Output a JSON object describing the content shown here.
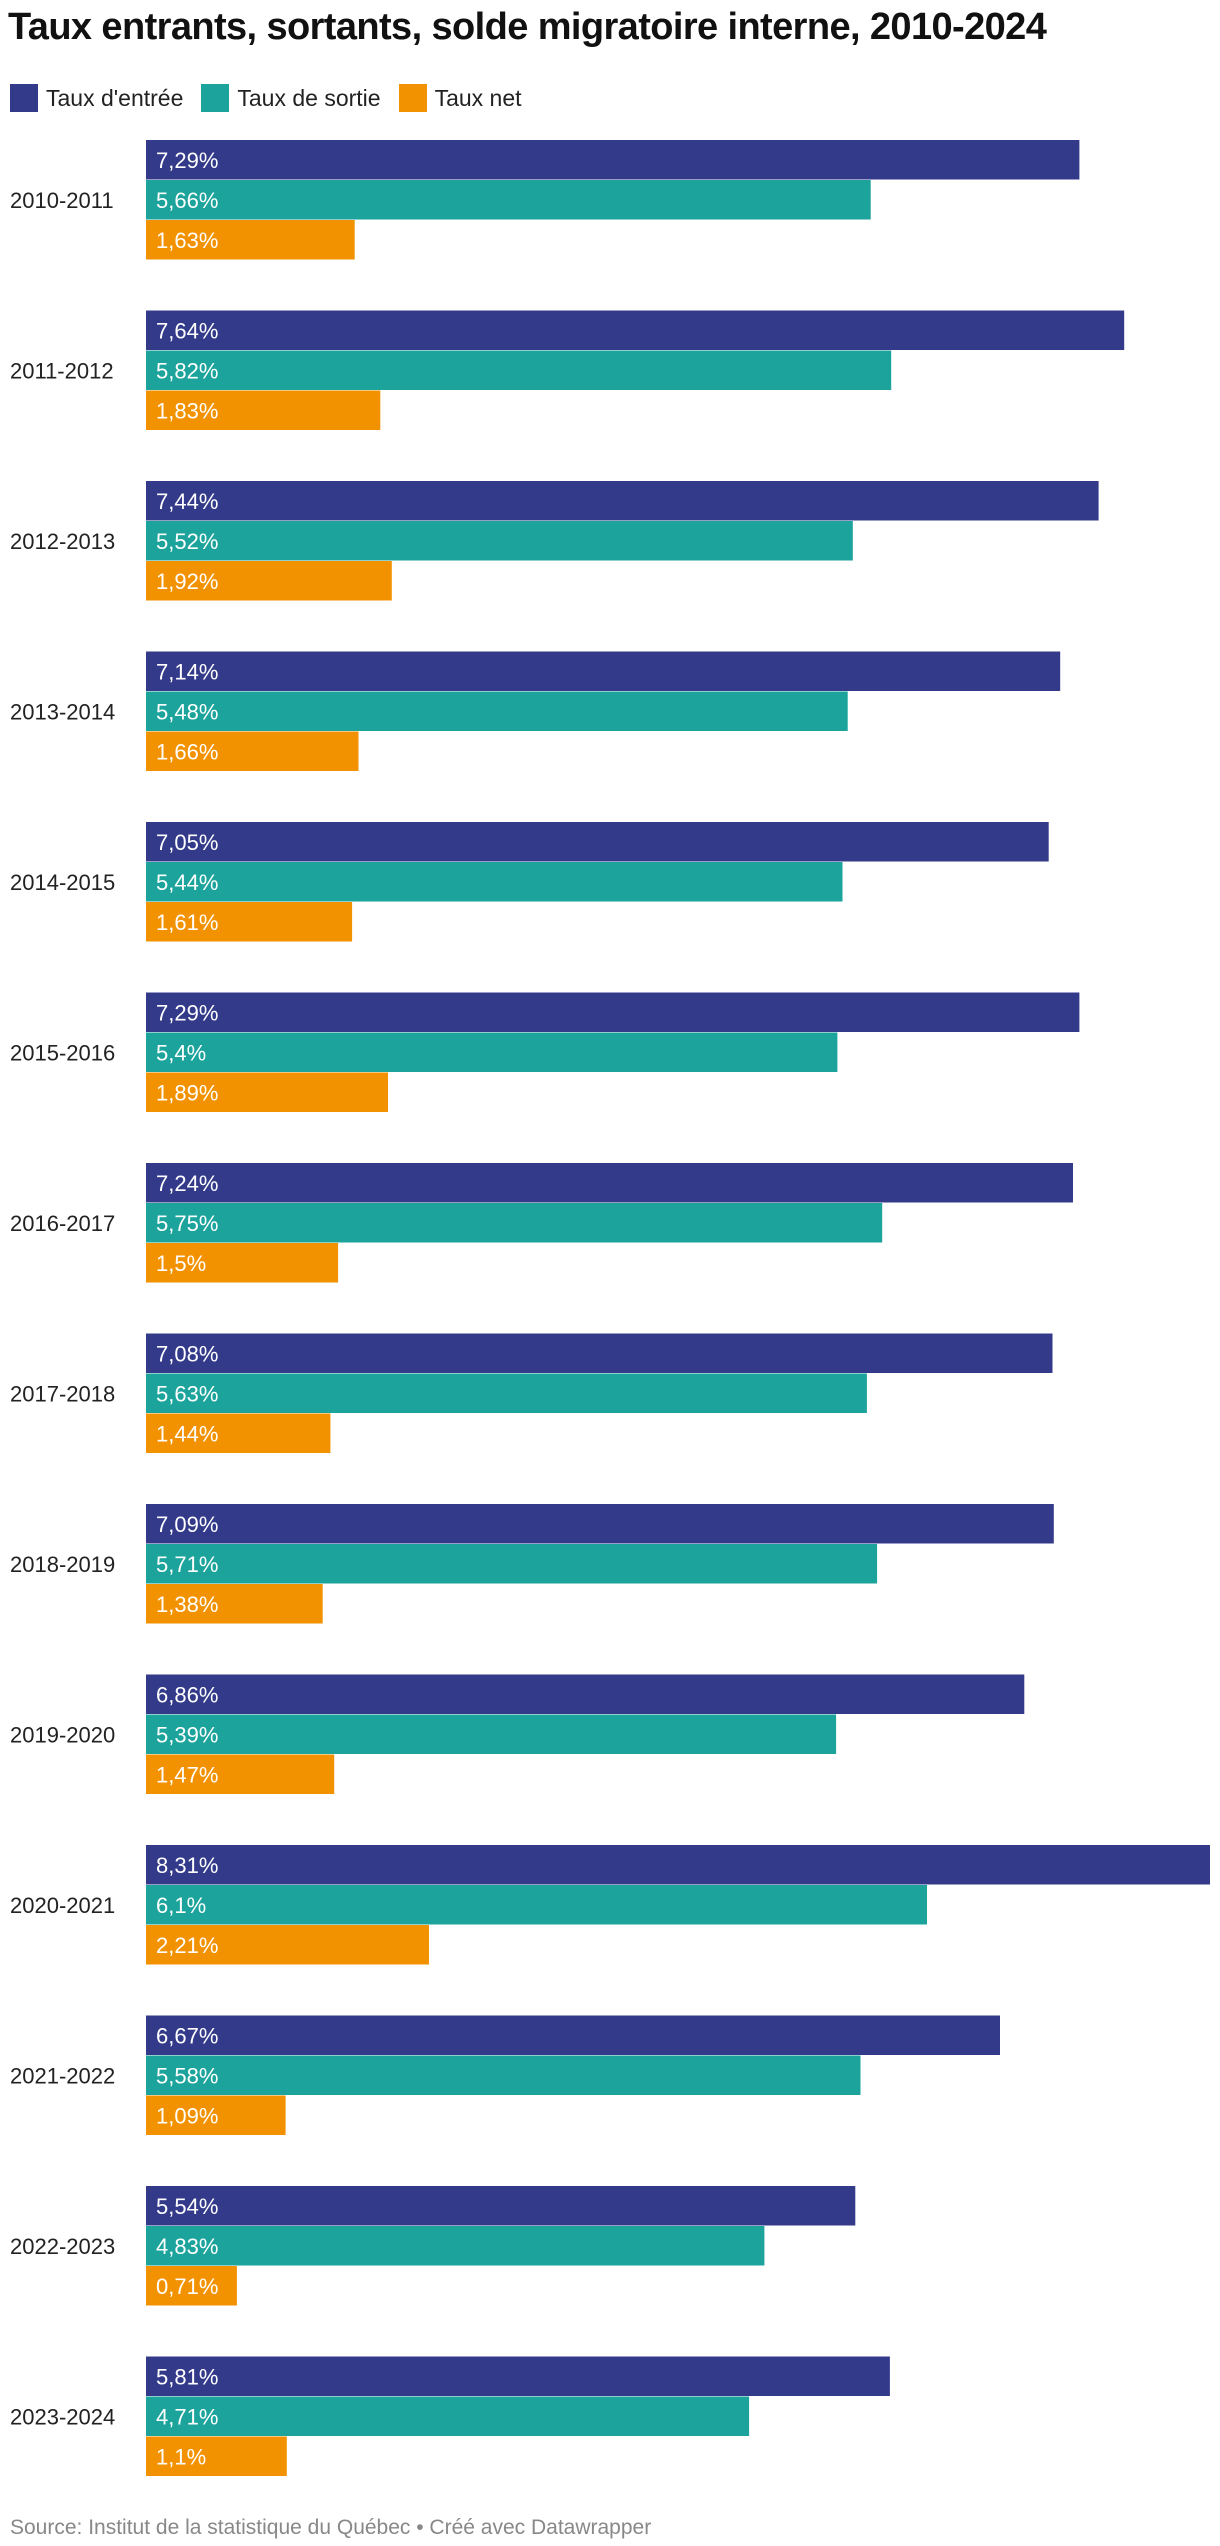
{
  "title": "Taux entrants, sortants, solde migratoire interne, 2010-2024",
  "source": "Source: Institut de la statistique du Québec • Créé avec Datawrapper",
  "chart_data": {
    "type": "bar",
    "orientation": "horizontal",
    "title": "Taux entrants, sortants, solde migratoire interne, 2010-2024",
    "xlim": [
      0,
      8.31
    ],
    "grid": false,
    "legend_position": "top-left",
    "categories": [
      "2010-2011",
      "2011-2012",
      "2012-2013",
      "2013-2014",
      "2014-2015",
      "2015-2016",
      "2016-2017",
      "2017-2018",
      "2018-2019",
      "2019-2020",
      "2020-2021",
      "2021-2022",
      "2022-2023",
      "2023-2024"
    ],
    "series": [
      {
        "name": "Taux d'entrée",
        "color": "#333a8a",
        "values": [
          7.29,
          7.64,
          7.44,
          7.14,
          7.05,
          7.29,
          7.24,
          7.08,
          7.09,
          6.86,
          8.31,
          6.67,
          5.54,
          5.81
        ],
        "labels": [
          "7,29%",
          "7,64%",
          "7,44%",
          "7,14%",
          "7,05%",
          "7,29%",
          "7,24%",
          "7,08%",
          "7,09%",
          "6,86%",
          "8,31%",
          "6,67%",
          "5,54%",
          "5,81%"
        ]
      },
      {
        "name": "Taux de sortie",
        "color": "#1ba39c",
        "values": [
          5.66,
          5.82,
          5.52,
          5.48,
          5.44,
          5.4,
          5.75,
          5.63,
          5.71,
          5.39,
          6.1,
          5.58,
          4.83,
          4.71
        ],
        "labels": [
          "5,66%",
          "5,82%",
          "5,52%",
          "5,48%",
          "5,44%",
          "5,4%",
          "5,75%",
          "5,63%",
          "5,71%",
          "5,39%",
          "6,1%",
          "5,58%",
          "4,83%",
          "4,71%"
        ]
      },
      {
        "name": "Taux net",
        "color": "#f39200",
        "values": [
          1.63,
          1.83,
          1.92,
          1.66,
          1.61,
          1.89,
          1.5,
          1.44,
          1.38,
          1.47,
          2.21,
          1.09,
          0.71,
          1.1
        ],
        "labels": [
          "1,63%",
          "1,83%",
          "1,92%",
          "1,66%",
          "1,61%",
          "1,89%",
          "1,5%",
          "1,44%",
          "1,38%",
          "1,47%",
          "2,21%",
          "1,09%",
          "0,71%",
          "1,1%"
        ]
      }
    ]
  }
}
